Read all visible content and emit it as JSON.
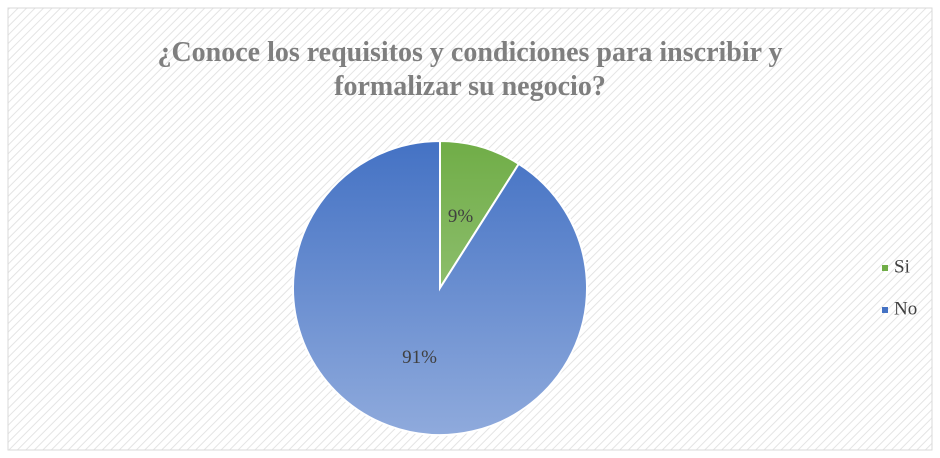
{
  "chart_data": {
    "type": "pie",
    "title": "¿Conoce los requisitos y condiciones para inscribir y formalizar su negocio?",
    "categories": [
      "Si",
      "No"
    ],
    "values": [
      9,
      91
    ],
    "value_labels": [
      "9%",
      "91%"
    ],
    "colors": [
      "#70ad47",
      "#4472c4"
    ],
    "legend": "right"
  }
}
